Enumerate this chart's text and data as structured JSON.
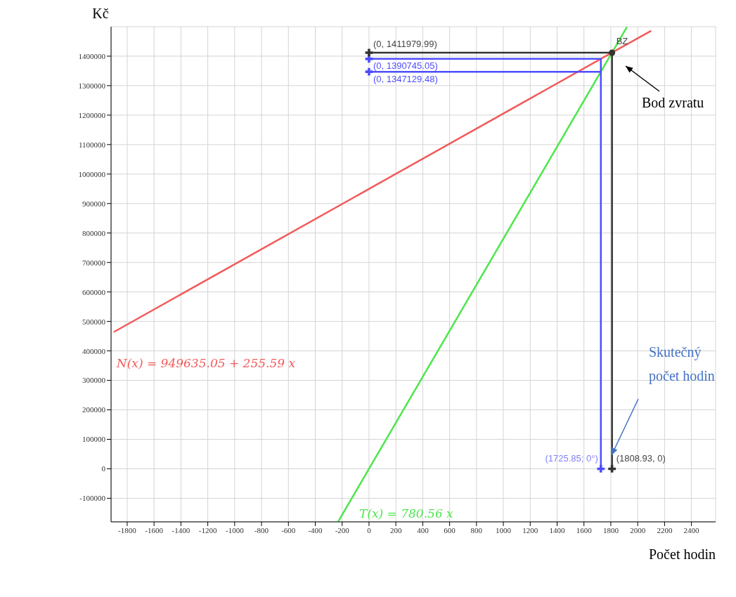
{
  "chart_data": {
    "type": "line",
    "xlabel": "Počet hodin",
    "ylabel": "Kč",
    "grid": true,
    "xlim": [
      -1920,
      2580
    ],
    "xticks": [
      -1800,
      -1600,
      -1400,
      -1200,
      -1000,
      -800,
      -600,
      -400,
      -200,
      0,
      200,
      400,
      600,
      800,
      1000,
      1200,
      1400,
      1600,
      1800,
      2000,
      2200,
      2400
    ],
    "ylim": [
      -180000,
      1500000
    ],
    "yticks": [
      -100000,
      0,
      100000,
      200000,
      300000,
      400000,
      500000,
      600000,
      700000,
      800000,
      900000,
      1000000,
      1100000,
      1200000,
      1300000,
      1400000
    ],
    "series": [
      {
        "name": "N(x) = 949635.05 + 255.59 x",
        "color": "#f25a5a",
        "x": [
          -1900,
          1808.93,
          2100
        ],
        "values": [
          464000,
          1411979.99,
          1486000
        ]
      },
      {
        "name": "T(x) = 780.56 x",
        "color": "#4de64d",
        "x": [
          -230,
          0,
          1808.93,
          1920
        ],
        "values": [
          -179500,
          0,
          1411979.99,
          1499000
        ]
      },
      {
        "color": "#333333",
        "x": [
          0,
          1808.93,
          1808.93
        ],
        "values": [
          1411979.99,
          1411979.99,
          0
        ]
      },
      {
        "color": "#4d4dff",
        "x": [
          0,
          1725.85,
          1725.85
        ],
        "values": [
          1390745.05,
          1390745.05,
          0
        ]
      },
      {
        "color": "#4d4dff",
        "x": [
          0,
          1725.85
        ],
        "values": [
          1347129.48,
          1347129.48
        ]
      },
      {
        "type": "scatter",
        "marker": "cross",
        "color": "#4d4dff",
        "x": [
          0,
          0,
          1725.85
        ],
        "values": [
          1390745.05,
          1347129.48,
          0
        ]
      },
      {
        "type": "scatter",
        "marker": "cross",
        "color": "#333333",
        "x": [
          0,
          1808.93
        ],
        "values": [
          1411979.99,
          0
        ]
      },
      {
        "type": "scatter",
        "marker": "circle",
        "color": "#333333",
        "x": [
          1808.93
        ],
        "values": [
          1411979.99
        ]
      }
    ],
    "annotations": [
      {
        "text": "(0, 1411979.99)",
        "x": 0,
        "y": 1411979.99
      },
      {
        "text": "(0, 1390745.05)",
        "x": 0,
        "y": 1390745.05
      },
      {
        "text": "(0, 1347129.48)",
        "x": 0,
        "y": 1347129.48
      },
      {
        "text": "BZ",
        "x": 1808.93,
        "y": 1411979.99
      },
      "Bod zvratu",
      {
        "text": "(1725.85; 0°)",
        "x": 1725.85,
        "y": 0
      },
      {
        "text": "(1808.93, 0)",
        "x": 1808.93,
        "y": 0
      },
      "Skutečný počet hodin"
    ]
  }
}
